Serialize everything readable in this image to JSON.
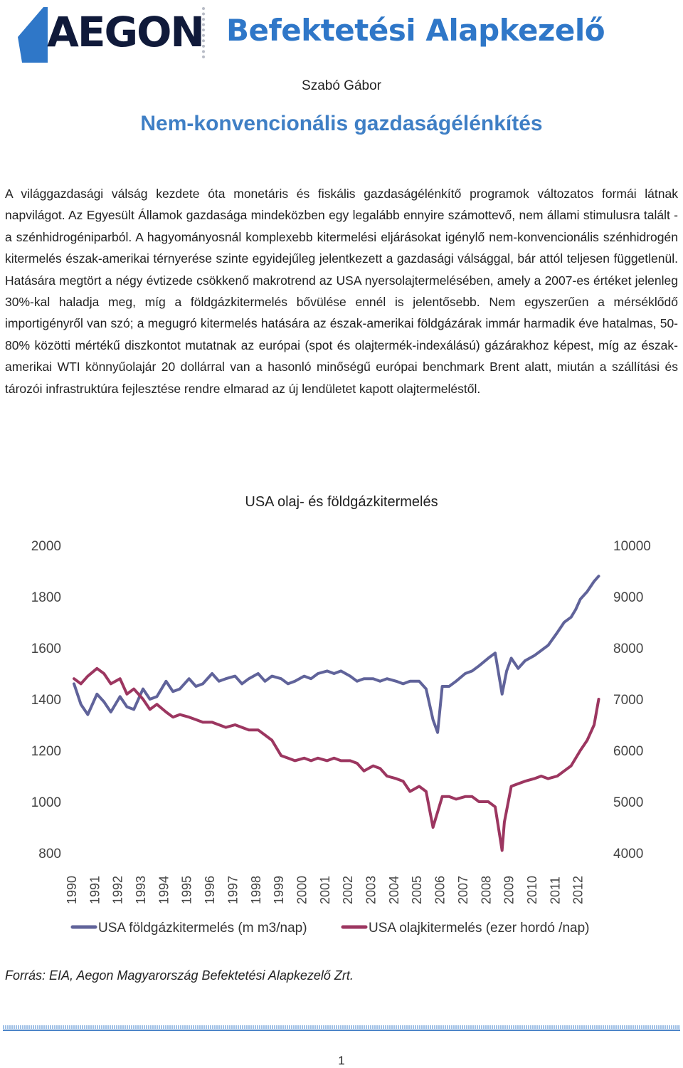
{
  "header": {
    "logo_text": "AEGON",
    "logo_subtitle": "Befektetési Alapkezelő"
  },
  "author": "Szabó Gábor",
  "title": "Nem-konvencionális gazdaságélénkítés",
  "body": "A világgazdasági válság kezdete óta monetáris és fiskális gazdaságélénkítő programok változatos formái látnak napvilágot. Az Egyesült Államok gazdasága mindeközben egy legalább ennyire számottevő, nem állami stimulusra talált - a szénhidrogéniparból. A hagyományosnál komplexebb kitermelési eljárásokat igénylő nem-konvencionális szénhidrogén kitermelés észak-amerikai térnyerése szinte egyidejűleg jelentkezett a gazdasági válsággal, bár attól teljesen függetlenül. Hatására megtört a négy évtizede csökkenő makrotrend az USA nyersolajtermelésében, amely a 2007-es értéket jelenleg 30%-kal haladja meg, míg a földgázkitermelés bővülése ennél is jelentősebb. Nem egyszerűen a mérséklődő importigényről van szó; a megugró kitermelés hatására az észak-amerikai földgázárak immár harmadik éve hatalmas, 50-80% közötti mértékű diszkontot mutatnak az európai (spot és olajtermék-indexálású) gázárakhoz képest, míg az észak-amerikai WTI könnyűolajár 20 dollárral van a hasonló minőségű európai benchmark Brent alatt, miután a szállítási és tározói infrastruktúra fejlesztése rendre elmarad az új lendületet kapott olajtermeléstől.",
  "chart_data": {
    "type": "line",
    "title": "USA olaj- és földgázkitermelés",
    "x_labels": [
      "1990",
      "1991",
      "1992",
      "1993",
      "1994",
      "1995",
      "1996",
      "1997",
      "1998",
      "1999",
      "2000",
      "2001",
      "2002",
      "2003",
      "2004",
      "2005",
      "2006",
      "2007",
      "2008",
      "2009",
      "2010",
      "2011",
      "2012"
    ],
    "y_left": {
      "ticks": [
        "2000",
        "1800",
        "1600",
        "1400",
        "1200",
        "1000",
        "800"
      ],
      "range": [
        800,
        2000
      ]
    },
    "y_right": {
      "ticks": [
        "10000",
        "9000",
        "8000",
        "7000",
        "6000",
        "5000",
        "4000"
      ],
      "range": [
        4000,
        10000
      ]
    },
    "series": [
      {
        "name": "USA földgázkitermelés (m m3/nap)",
        "axis": "left",
        "color": "#60639a",
        "x": [
          1990.0,
          1990.3,
          1990.6,
          1991.0,
          1991.3,
          1991.6,
          1992.0,
          1992.3,
          1992.6,
          1993.0,
          1993.3,
          1993.6,
          1994.0,
          1994.3,
          1994.6,
          1995.0,
          1995.3,
          1995.6,
          1996.0,
          1996.3,
          1996.6,
          1997.0,
          1997.3,
          1997.6,
          1998.0,
          1998.3,
          1998.6,
          1999.0,
          1999.3,
          1999.6,
          2000.0,
          2000.3,
          2000.6,
          2001.0,
          2001.3,
          2001.6,
          2002.0,
          2002.3,
          2002.6,
          2003.0,
          2003.3,
          2003.6,
          2004.0,
          2004.3,
          2004.6,
          2005.0,
          2005.3,
          2005.6,
          2005.8,
          2006.0,
          2006.3,
          2006.6,
          2007.0,
          2007.3,
          2007.6,
          2008.0,
          2008.3,
          2008.6,
          2008.8,
          2009.0,
          2009.3,
          2009.6,
          2010.0,
          2010.3,
          2010.6,
          2011.0,
          2011.3,
          2011.6,
          2011.8,
          2012.0,
          2012.3,
          2012.6,
          2012.8
        ],
        "values": [
          1460,
          1380,
          1340,
          1420,
          1390,
          1350,
          1410,
          1370,
          1360,
          1440,
          1400,
          1410,
          1470,
          1430,
          1440,
          1480,
          1450,
          1460,
          1500,
          1470,
          1480,
          1490,
          1460,
          1480,
          1500,
          1470,
          1490,
          1480,
          1460,
          1470,
          1490,
          1480,
          1500,
          1510,
          1500,
          1510,
          1490,
          1470,
          1480,
          1480,
          1470,
          1480,
          1470,
          1460,
          1470,
          1470,
          1440,
          1320,
          1270,
          1450,
          1450,
          1470,
          1500,
          1510,
          1530,
          1560,
          1580,
          1420,
          1510,
          1560,
          1520,
          1550,
          1570,
          1590,
          1610,
          1660,
          1700,
          1720,
          1750,
          1790,
          1820,
          1860,
          1880
        ]
      },
      {
        "name": "USA olajkitermelés (ezer hordó /nap)",
        "axis": "right",
        "color": "#9c3660",
        "x": [
          1990.0,
          1990.3,
          1990.6,
          1991.0,
          1991.3,
          1991.6,
          1992.0,
          1992.3,
          1992.6,
          1993.0,
          1993.3,
          1993.6,
          1994.0,
          1994.3,
          1994.6,
          1995.0,
          1995.3,
          1995.6,
          1996.0,
          1996.3,
          1996.6,
          1997.0,
          1997.3,
          1997.6,
          1998.0,
          1998.3,
          1998.6,
          1999.0,
          1999.3,
          1999.6,
          2000.0,
          2000.3,
          2000.6,
          2001.0,
          2001.3,
          2001.6,
          2002.0,
          2002.3,
          2002.6,
          2003.0,
          2003.3,
          2003.6,
          2004.0,
          2004.3,
          2004.6,
          2005.0,
          2005.3,
          2005.6,
          2005.8,
          2006.0,
          2006.3,
          2006.6,
          2007.0,
          2007.3,
          2007.6,
          2008.0,
          2008.3,
          2008.6,
          2008.7,
          2009.0,
          2009.3,
          2009.6,
          2010.0,
          2010.3,
          2010.6,
          2011.0,
          2011.3,
          2011.6,
          2012.0,
          2012.3,
          2012.6,
          2012.8
        ],
        "values": [
          7400,
          7300,
          7450,
          7600,
          7500,
          7300,
          7400,
          7100,
          7200,
          7000,
          6800,
          6900,
          6750,
          6650,
          6700,
          6650,
          6600,
          6550,
          6550,
          6500,
          6450,
          6500,
          6450,
          6400,
          6400,
          6300,
          6200,
          5900,
          5850,
          5800,
          5850,
          5800,
          5850,
          5800,
          5850,
          5800,
          5800,
          5750,
          5600,
          5700,
          5650,
          5500,
          5450,
          5400,
          5200,
          5300,
          5200,
          4500,
          4800,
          5100,
          5100,
          5050,
          5100,
          5100,
          5000,
          5000,
          4900,
          4050,
          4600,
          5300,
          5350,
          5400,
          5450,
          5500,
          5450,
          5500,
          5600,
          5700,
          6000,
          6200,
          6500,
          7000
        ]
      }
    ],
    "grid": false,
    "legend": "bottom"
  },
  "source": "Forrás: EIA, Aegon Magyarország Befektetési Alapkezelő Zrt.",
  "page_number": "1"
}
